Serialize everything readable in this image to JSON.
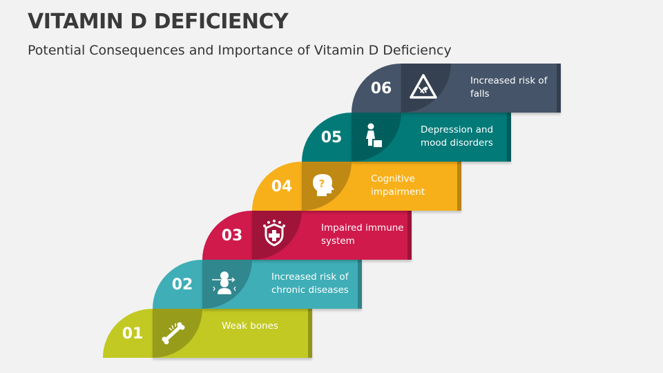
{
  "title": "VITAMIN D DEFICIENCY",
  "subtitle": "Potential Consequences and Importance of Vitamin D Deficiency",
  "steps": [
    {
      "number": "01",
      "label": "Weak bones",
      "color": "#C2C923",
      "icon": "broken-bone-icon"
    },
    {
      "number": "02",
      "label": "Increased risk of chronic diseases",
      "color": "#3FAEB6",
      "icon": "aging-person-icon"
    },
    {
      "number": "03",
      "label": "Impaired immune system",
      "color": "#CF1A4B",
      "icon": "immune-shield-icon"
    },
    {
      "number": "04",
      "label": "Cognitive impairment",
      "color": "#F7B01A",
      "icon": "head-question-icon"
    },
    {
      "number": "05",
      "label": "Depression and mood disorders",
      "color": "#017A78",
      "icon": "depressed-person-icon"
    },
    {
      "number": "06",
      "label": "Increased risk of falls",
      "color": "#455468",
      "icon": "fall-warning-icon"
    }
  ]
}
